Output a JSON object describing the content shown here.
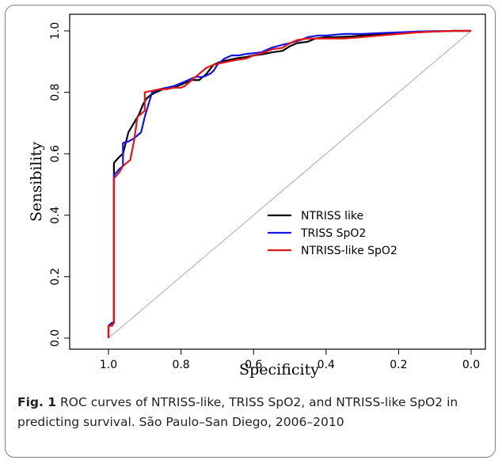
{
  "figure": {
    "label": "Fig. 1",
    "caption": "ROC curves of NTRISS-like, TRISS SpO2, and NTRISS-like SpO2 in predicting survival. São Paulo–San Diego, 2006–2010"
  },
  "chart_data": {
    "type": "line",
    "xlabel": "Specificity",
    "ylabel": "Sensibility",
    "xlim": [
      1.0,
      0.0
    ],
    "ylim": [
      0.0,
      1.0
    ],
    "x_ticks": [
      "1.0",
      "0.8",
      "0.6",
      "0.4",
      "0.2",
      "0.0"
    ],
    "y_ticks": [
      "0.0",
      "0.2",
      "0.4",
      "0.6",
      "0.8",
      "1.0"
    ],
    "grid": false,
    "legend_position": "lower-right",
    "reference_line": {
      "from": [
        1.0,
        0.0
      ],
      "to": [
        0.0,
        1.0
      ],
      "color": "#aaaaaa"
    },
    "series": [
      {
        "name": "NTRISS like",
        "color": "#000000",
        "x": [
          1.0,
          1.0,
          0.99,
          0.985,
          0.985,
          0.97,
          0.96,
          0.945,
          0.93,
          0.915,
          0.905,
          0.895,
          0.885,
          0.87,
          0.85,
          0.83,
          0.81,
          0.79,
          0.77,
          0.75,
          0.73,
          0.71,
          0.69,
          0.67,
          0.65,
          0.62,
          0.6,
          0.57,
          0.55,
          0.52,
          0.5,
          0.48,
          0.45,
          0.43,
          0.4,
          0.37,
          0.33,
          0.3,
          0.25,
          0.2,
          0.15,
          0.1,
          0.05,
          0.0
        ],
        "y": [
          0.0,
          0.04,
          0.05,
          0.05,
          0.57,
          0.59,
          0.6,
          0.67,
          0.7,
          0.73,
          0.76,
          0.78,
          0.79,
          0.8,
          0.81,
          0.815,
          0.82,
          0.83,
          0.84,
          0.84,
          0.86,
          0.89,
          0.9,
          0.905,
          0.91,
          0.915,
          0.92,
          0.925,
          0.93,
          0.935,
          0.95,
          0.96,
          0.965,
          0.975,
          0.98,
          0.98,
          0.982,
          0.985,
          0.99,
          0.993,
          0.995,
          0.998,
          1.0,
          1.0
        ]
      },
      {
        "name": "TRISS SpO2",
        "color": "#1414e6",
        "x": [
          1.0,
          1.0,
          0.99,
          0.985,
          0.985,
          0.97,
          0.96,
          0.96,
          0.945,
          0.93,
          0.915,
          0.91,
          0.9,
          0.9,
          0.885,
          0.88,
          0.86,
          0.84,
          0.82,
          0.8,
          0.78,
          0.76,
          0.74,
          0.73,
          0.72,
          0.71,
          0.7,
          0.69,
          0.68,
          0.66,
          0.64,
          0.62,
          0.58,
          0.55,
          0.52,
          0.5,
          0.47,
          0.45,
          0.42,
          0.4,
          0.35,
          0.3,
          0.25,
          0.2,
          0.15,
          0.1,
          0.05,
          0.0
        ],
        "y": [
          0.0,
          0.04,
          0.05,
          0.05,
          0.53,
          0.55,
          0.56,
          0.635,
          0.64,
          0.65,
          0.665,
          0.67,
          0.72,
          0.72,
          0.78,
          0.8,
          0.81,
          0.815,
          0.82,
          0.83,
          0.84,
          0.85,
          0.85,
          0.855,
          0.86,
          0.87,
          0.89,
          0.9,
          0.91,
          0.92,
          0.92,
          0.925,
          0.93,
          0.945,
          0.955,
          0.96,
          0.97,
          0.98,
          0.985,
          0.985,
          0.99,
          0.99,
          0.993,
          0.995,
          0.998,
          0.999,
          1.0,
          1.0
        ]
      },
      {
        "name": "NTRISS-like SpO2",
        "color": "#e61414",
        "x": [
          1.0,
          1.0,
          0.99,
          0.985,
          0.985,
          0.97,
          0.96,
          0.95,
          0.94,
          0.93,
          0.92,
          0.91,
          0.9,
          0.9,
          0.88,
          0.86,
          0.84,
          0.82,
          0.8,
          0.79,
          0.77,
          0.75,
          0.73,
          0.71,
          0.69,
          0.67,
          0.65,
          0.62,
          0.6,
          0.57,
          0.55,
          0.52,
          0.5,
          0.48,
          0.45,
          0.4,
          0.35,
          0.3,
          0.25,
          0.2,
          0.15,
          0.1,
          0.05,
          0.0
        ],
        "y": [
          0.0,
          0.04,
          0.04,
          0.05,
          0.52,
          0.54,
          0.56,
          0.57,
          0.58,
          0.64,
          0.72,
          0.73,
          0.74,
          0.8,
          0.805,
          0.81,
          0.81,
          0.815,
          0.815,
          0.82,
          0.84,
          0.86,
          0.88,
          0.89,
          0.895,
          0.9,
          0.905,
          0.91,
          0.92,
          0.93,
          0.94,
          0.945,
          0.96,
          0.97,
          0.975,
          0.975,
          0.975,
          0.98,
          0.985,
          0.99,
          0.995,
          0.998,
          1.0,
          1.0
        ]
      }
    ]
  }
}
